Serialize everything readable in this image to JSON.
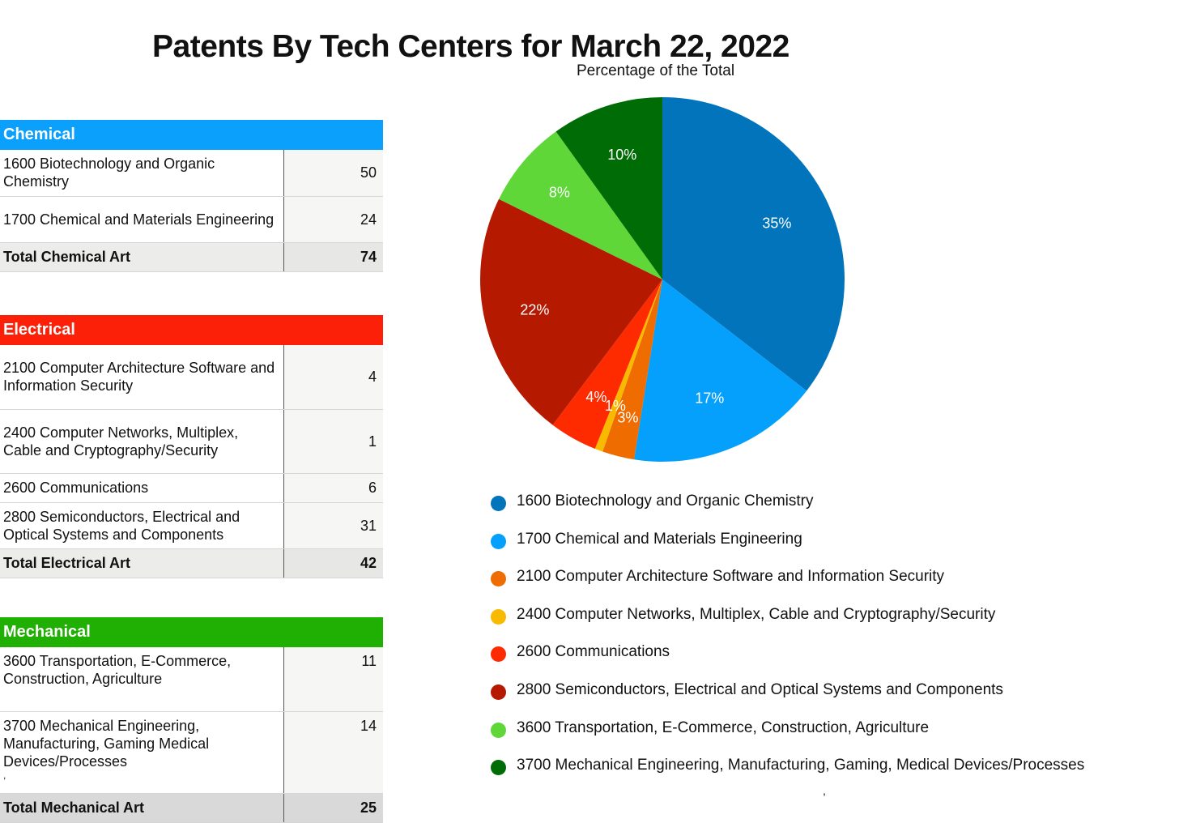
{
  "title": "Patents By Tech Centers for March 22, 2022",
  "subtitle": "Percentage of the Total",
  "tables": {
    "chemical": {
      "header": "Chemical",
      "color": "#0aa0fb",
      "rows": [
        {
          "label": "1600 Biotechnology and Organic Chemistry",
          "value": "50"
        },
        {
          "label": "1700 Chemical and Materials Engineering",
          "value": "24"
        }
      ],
      "total_label": "Total Chemical Art",
      "total_value": "74"
    },
    "electrical": {
      "header": "Electrical",
      "color": "#fb2007",
      "rows": [
        {
          "label": "2100 Computer Architecture Software and Information Security",
          "value": "4"
        },
        {
          "label": "2400 Computer Networks, Multiplex, Cable and Cryptography/Security",
          "value": "1"
        },
        {
          "label": "2600 Communications",
          "value": "6"
        },
        {
          "label": "2800 Semiconductors, Electrical and Optical Systems and Components",
          "value": "31"
        }
      ],
      "total_label": "Total Electrical Art",
      "total_value": "42"
    },
    "mechanical": {
      "header": "Mechanical",
      "color": "#20b003",
      "rows": [
        {
          "label": "3600 Transportation, E-Commerce, Construction, Agriculture",
          "value": "11"
        },
        {
          "label": "3700 Mechanical Engineering, Manufacturing, Gaming Medical Devices/Processes",
          "value": "14"
        }
      ],
      "stray_mark": ",",
      "total_label": "Total Mechanical Art",
      "total_value": "25"
    }
  },
  "chart_data": {
    "type": "pie",
    "title": "Patents By Tech Centers for March 22, 2022",
    "subtitle": "Percentage of the Total",
    "start_angle_deg": 0,
    "direction": "clockwise",
    "legend_position": "bottom",
    "slices": [
      {
        "label": "1600 Biotechnology and Organic Chemistry",
        "value": 50,
        "percent_label": "35%",
        "color": "#0274bc"
      },
      {
        "label": "1700 Chemical and Materials Engineering",
        "value": 24,
        "percent_label": "17%",
        "color": "#04a0fb"
      },
      {
        "label": "2100 Computer Architecture Software and Information Security",
        "value": 4,
        "percent_label": "3%",
        "color": "#ef6c00"
      },
      {
        "label": "2400 Computer Networks, Multiplex, Cable and Cryptography/Security",
        "value": 1,
        "percent_label": "1%",
        "color": "#f8ba00"
      },
      {
        "label": "2600 Communications",
        "value": 6,
        "percent_label": "4%",
        "color": "#fe2a00"
      },
      {
        "label": "2800 Semiconductors, Electrical and Optical Systems and Components",
        "value": 31,
        "percent_label": "22%",
        "color": "#b51900"
      },
      {
        "label": "3600 Transportation, E-Commerce, Construction, Agriculture",
        "value": 11,
        "percent_label": "8%",
        "color": "#5fd738"
      },
      {
        "label": "3700 Mechanical Engineering, Manufacturing, Gaming, Medical Devices/Processes",
        "value": 14,
        "percent_label": "10%",
        "color": "#006c05"
      }
    ]
  },
  "stray_mark_bottom": ","
}
